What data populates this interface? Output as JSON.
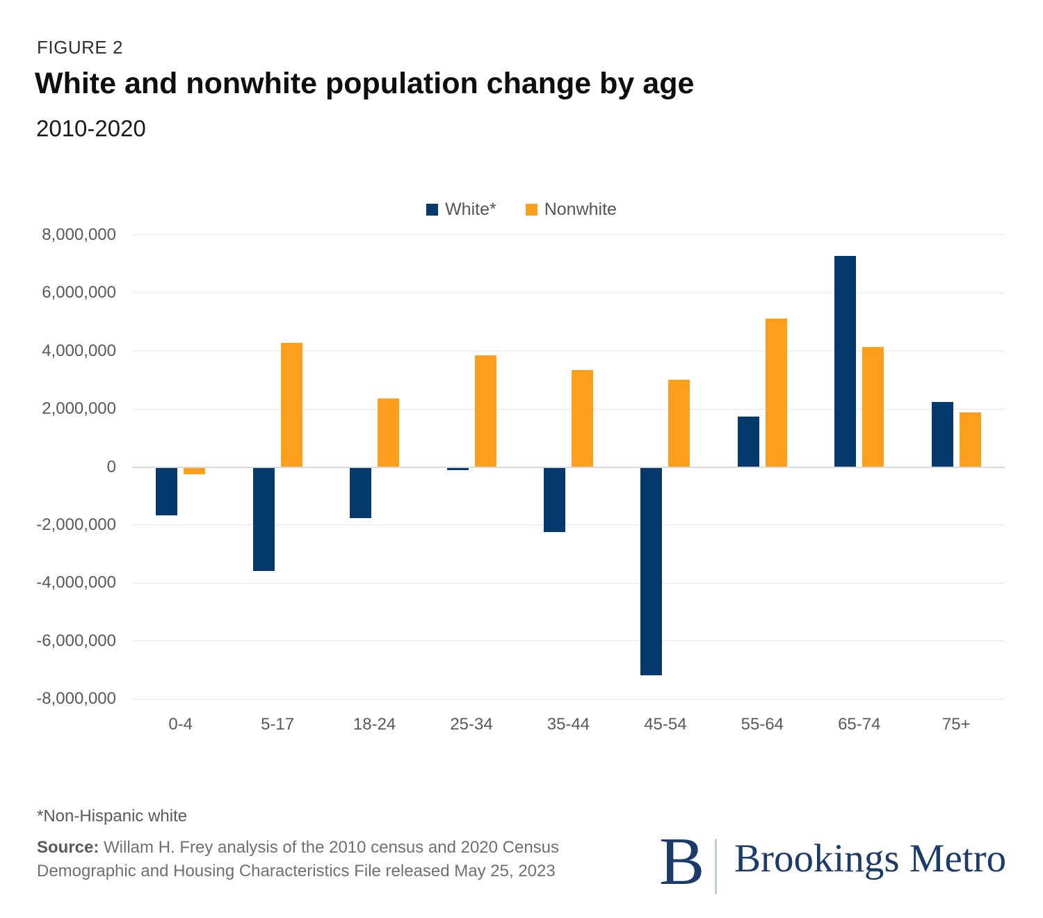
{
  "figure": {
    "label": "FIGURE 2",
    "title": "White and nonwhite population change by age",
    "subtitle": "2010-2020"
  },
  "chart_data": {
    "type": "bar",
    "categories": [
      "0-4",
      "5-17",
      "18-24",
      "25-34",
      "35-44",
      "45-54",
      "55-64",
      "65-74",
      "75+"
    ],
    "series": [
      {
        "name": "White*",
        "color": "#04396D",
        "values": [
          -1640000,
          -3550000,
          -1750000,
          -90000,
          -2210000,
          -7150000,
          1740000,
          7280000,
          2240000
        ]
      },
      {
        "name": "Nonwhite",
        "color": "#FD9F1D",
        "values": [
          -220000,
          4290000,
          2360000,
          3860000,
          3340000,
          3000000,
          5120000,
          4130000,
          1880000
        ]
      }
    ],
    "title": "White and nonwhite population change by age",
    "subtitle": "2010-2020",
    "xlabel": "",
    "ylabel": "",
    "ylim": [
      -8000000,
      8000000
    ],
    "grid": true,
    "legend_position": "top-center",
    "yticks": {
      "values": [
        8000000,
        6000000,
        4000000,
        2000000,
        0,
        -2000000,
        -4000000,
        -6000000,
        -8000000
      ],
      "labels": [
        "8,000,000",
        "6,000,000",
        "4,000,000",
        "2,000,000",
        "0",
        "-2,000,000",
        "-4,000,000",
        "-6,000,000",
        "-8,000,000"
      ]
    },
    "gridline_color": "#e4e4e4",
    "zero_line_color": "#d9d9d9"
  },
  "footer": {
    "footnote": "*Non-Hispanic white",
    "source_label": "Source:",
    "source_lines": [
      "Willam H. Frey analysis of the 2010 census and 2020 Census",
      "Demographic and Housing Characteristics File released May 25, 2023"
    ],
    "logo": {
      "monogram": "B",
      "name": "Brookings Metro",
      "color": "#1b3c6b"
    }
  }
}
